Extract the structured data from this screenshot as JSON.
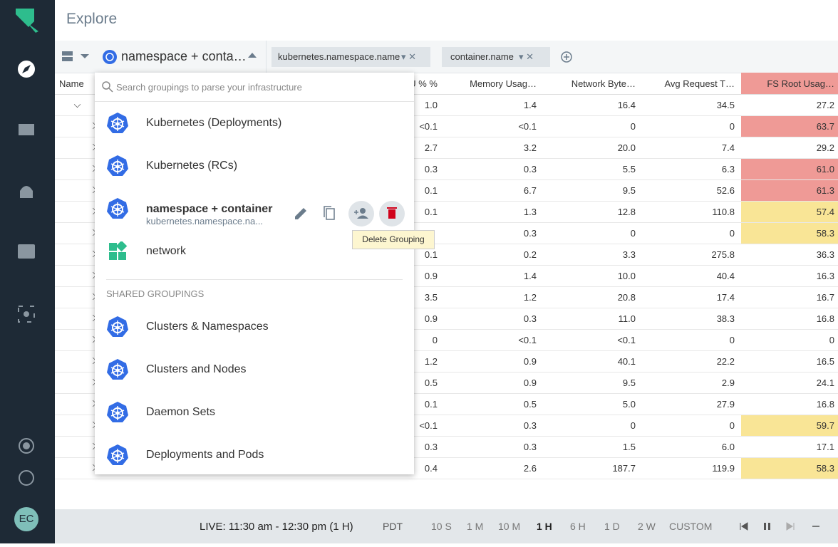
{
  "sidebar": {
    "avatar": "EC"
  },
  "header": {
    "title": "Explore"
  },
  "toolbar": {
    "grouping": "namespace + conta…",
    "tags": [
      "kubernetes.namespace.name",
      "container.name"
    ]
  },
  "table": {
    "columns": [
      "Name",
      "U % %",
      "Memory Usag…",
      "Network Byte…",
      "Avg Request T…",
      "FS Root Usag…"
    ],
    "rows": [
      {
        "cells": [
          "1.0",
          "1.4",
          "16.4",
          "34.5",
          "27.2"
        ],
        "highlight": null
      },
      {
        "cells": [
          "<0.1",
          "<0.1",
          "0",
          "0",
          "63.7"
        ],
        "highlight": "#ef9a96"
      },
      {
        "cells": [
          "2.7",
          "3.2",
          "20.0",
          "7.4",
          "29.2"
        ],
        "highlight": null
      },
      {
        "cells": [
          "0.3",
          "0.3",
          "5.5",
          "6.3",
          "61.0"
        ],
        "highlight": "#ef9a96"
      },
      {
        "cells": [
          "0.1",
          "6.7",
          "9.5",
          "52.6",
          "61.3"
        ],
        "highlight": "#ef9a96"
      },
      {
        "cells": [
          "0.1",
          "1.3",
          "12.8",
          "110.8",
          "57.4"
        ],
        "highlight": "#f9e596"
      },
      {
        "cells": [
          null,
          "0.3",
          "0",
          "0",
          "58.3"
        ],
        "highlight": "#f9e596"
      },
      {
        "cells": [
          "0.1",
          "0.2",
          "3.3",
          "275.8",
          "36.3"
        ],
        "highlight": null
      },
      {
        "cells": [
          "0.9",
          "1.4",
          "10.0",
          "40.4",
          "16.3"
        ],
        "highlight": null
      },
      {
        "cells": [
          "3.5",
          "1.2",
          "20.8",
          "17.4",
          "16.7"
        ],
        "highlight": null
      },
      {
        "cells": [
          "0.9",
          "0.3",
          "11.0",
          "38.3",
          "16.8"
        ],
        "highlight": null
      },
      {
        "cells": [
          "0",
          "<0.1",
          "<0.1",
          "0",
          "0"
        ],
        "highlight": null
      },
      {
        "cells": [
          "1.2",
          "0.9",
          "40.1",
          "22.2",
          "16.5"
        ],
        "highlight": null
      },
      {
        "cells": [
          "0.5",
          "0.9",
          "9.5",
          "2.9",
          "24.1"
        ],
        "highlight": null
      },
      {
        "cells": [
          "0.1",
          "0.5",
          "5.0",
          "27.9",
          "16.8"
        ],
        "highlight": null
      },
      {
        "cells": [
          "<0.1",
          "0.3",
          "0",
          "0",
          "59.7"
        ],
        "highlight": "#f9e596"
      },
      {
        "cells": [
          "0.3",
          "0.3",
          "1.5",
          "6.0",
          "17.1"
        ],
        "highlight": null
      },
      {
        "cells": [
          "0.4",
          "2.6",
          "187.7",
          "119.9",
          "58.3"
        ],
        "highlight": "#f9e596"
      }
    ]
  },
  "dropdown": {
    "search_placeholder": "Search groupings to parse your infrastructure",
    "groupings": [
      {
        "label": "Kubernetes (Deployments)"
      },
      {
        "label": "Kubernetes (RCs)"
      },
      {
        "label": "namespace + container",
        "sublabel": "kubernetes.namespace.na..."
      },
      {
        "label": "network"
      }
    ],
    "shared_header": "SHARED GROUPINGS",
    "shared": [
      "Clusters & Namespaces",
      "Clusters and Nodes",
      "Daemon Sets",
      "Deployments and Pods"
    ]
  },
  "tooltip": "Delete Grouping",
  "footer": {
    "live": "LIVE: 11:30 am - 12:30 pm (1 H)",
    "timezone": "PDT",
    "ranges": [
      "10 S",
      "1 M",
      "10 M",
      "1 H",
      "6 H",
      "1 D",
      "2 W",
      "CUSTOM"
    ],
    "active": 3
  }
}
